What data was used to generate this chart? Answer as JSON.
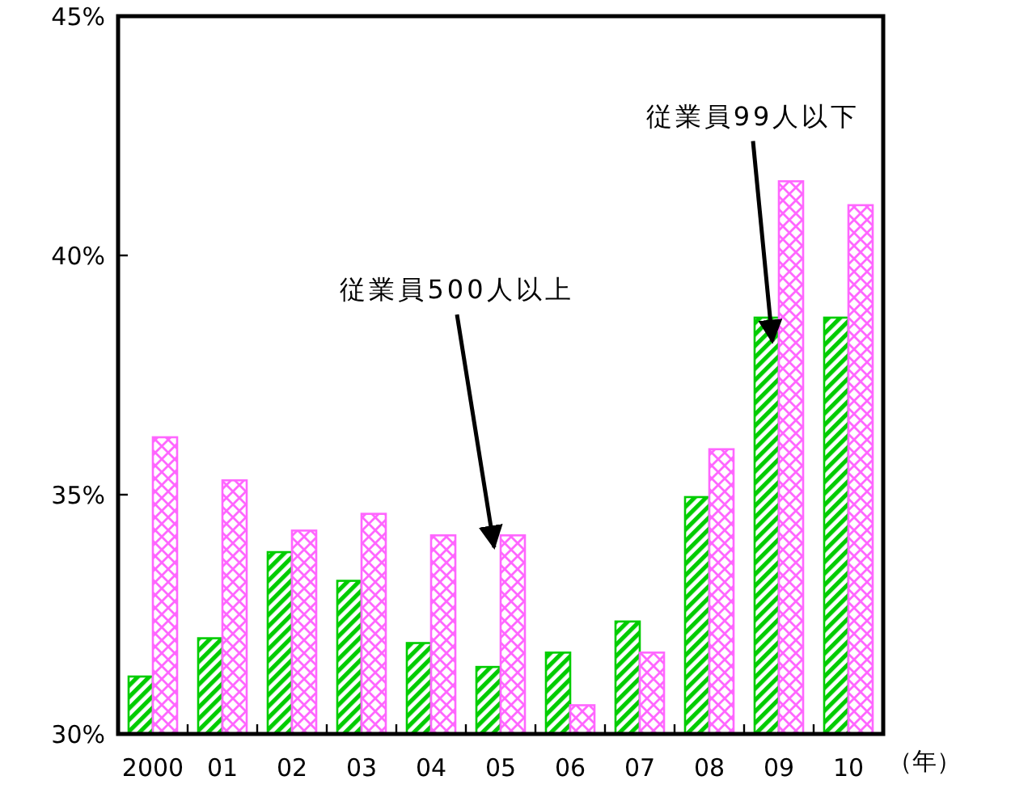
{
  "chart_data": {
    "type": "bar",
    "xlabel": "（年）",
    "categories": [
      "2000",
      "01",
      "02",
      "03",
      "04",
      "05",
      "06",
      "07",
      "08",
      "09",
      "10"
    ],
    "series": [
      {
        "color": "#00cc00",
        "values": [
          31.2,
          32.0,
          33.8,
          33.2,
          31.9,
          31.4,
          31.7,
          32.35,
          34.95,
          38.7,
          38.7
        ]
      },
      {
        "color": "#ff66ff",
        "values": [
          36.2,
          35.3,
          34.25,
          34.6,
          34.15,
          34.15,
          30.6,
          31.7,
          35.95,
          41.55,
          41.05
        ]
      }
    ],
    "ylim": [
      30,
      45
    ],
    "yticks": [
      {
        "value": 30,
        "label": "30%"
      },
      {
        "value": 35,
        "label": "35%"
      },
      {
        "value": 40,
        "label": "40%"
      },
      {
        "value": 45,
        "label": "45%"
      }
    ],
    "grid": false,
    "annotations": [
      {
        "text": "従業員500人以上",
        "x": "05",
        "y": 33.9
      },
      {
        "text": "従業員99人以下",
        "x": "09",
        "y": 38.2
      }
    ]
  }
}
